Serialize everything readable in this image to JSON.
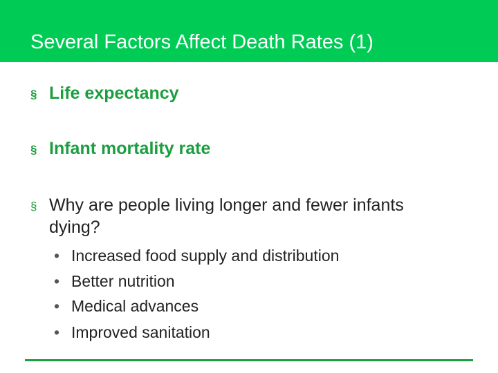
{
  "slide": {
    "title": "Several Factors Affect Death Rates (1)",
    "bullet_marker": "§",
    "sub_marker": "•",
    "bullets": [
      {
        "text": "Life expectancy"
      },
      {
        "text": "Infant mortality rate"
      },
      {
        "line1": "Why are people living longer and fewer infants",
        "line2": "dying?"
      }
    ],
    "sub_bullets": [
      "Increased food supply and distribution",
      "Better nutrition",
      "Medical advances",
      "Improved sanitation"
    ]
  },
  "colors": {
    "title_bar": "#00cc55",
    "accent_green": "#1a9e3f",
    "body_text": "#222222"
  }
}
